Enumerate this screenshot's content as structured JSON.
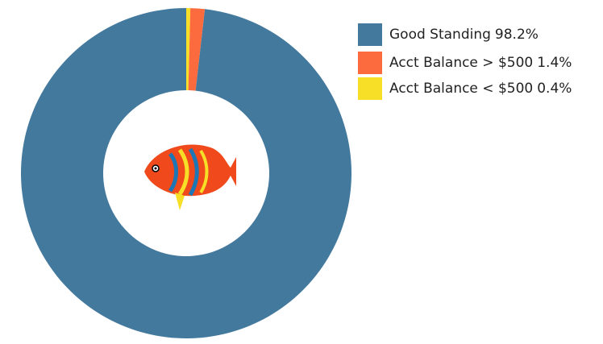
{
  "chart_data": {
    "type": "donut",
    "categories": [
      "Good Standing",
      "Acct Balance > $500",
      "Acct Balance < $500"
    ],
    "values": [
      98.2,
      1.4,
      0.4
    ],
    "value_labels": [
      "98.2%",
      "1.4%",
      "0.4%"
    ],
    "colors": [
      "#44799e",
      "#fb6b3e",
      "#f6df26"
    ],
    "legend": "right"
  }
}
